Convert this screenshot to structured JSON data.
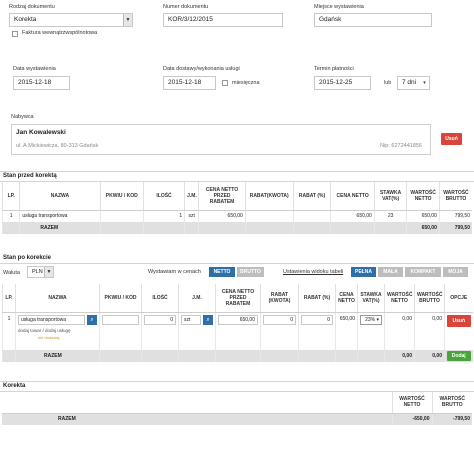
{
  "header": {
    "doc_type_label": "Rodzaj dokumentu",
    "doc_type_value": "Korekta",
    "vat_invoice_checkbox_label": "Faktura wewnątrzwspólnotowa",
    "doc_number_label": "Numer dokumentu",
    "doc_number_value": "KOR/3/12/2015",
    "place_label": "Miejsce wystawienia",
    "place_value": "Gdańsk"
  },
  "dates": {
    "issue_label": "Data wystawienia",
    "issue_value": "2015-12-18",
    "delivery_label": "Data dostawy/wykonania usługi",
    "delivery_value": "2015-12-18",
    "monthly_label": "miesięczna",
    "due_label": "Termin płatności",
    "due_value": "2015-12-25",
    "or_label": "lub",
    "days_value": "7 dni"
  },
  "buyer": {
    "label": "Nabywca",
    "name": "Jan Kowalewski",
    "address": "ul. A.Mickiewicza, 80-313 Gdańsk",
    "nip": "Nip: 6272441856",
    "remove_label": "Usuń"
  },
  "before": {
    "title": "Stan przed korektą",
    "headers": [
      "LP.",
      "NAZWA",
      "PKWIU / KOD",
      "ILOŚĆ",
      "J.M.",
      "CENA NETTO PRZED RABATEM",
      "RABAT(KWOTA)",
      "RABAT (%)",
      "CENA NETTO",
      "STAWKA VAT(%)",
      "WARTOŚĆ NETTO",
      "WARTOŚĆ BRUTTO"
    ],
    "row": [
      "1",
      "usługa transportowa",
      "",
      "1",
      "szt",
      "650,00",
      "",
      "",
      "650,00",
      "23",
      "650,00",
      "799,50"
    ],
    "sum_label": "RAZEM",
    "sum_netto": "650,00",
    "sum_brutto": "799,50"
  },
  "after": {
    "title": "Stan po korekcie",
    "currency_label": "Waluta",
    "currency_value": "PLN",
    "prices_label": "Wystawiam w cenach",
    "netto_label": "NETTO",
    "brutto_label": "BRUTTO",
    "view_settings_label": "Ustawienia widoku tabeli",
    "view_options": [
      "PEŁNA",
      "MAŁA",
      "KOMPAKT",
      "MOJA"
    ],
    "headers": [
      "LP.",
      "NAZWA",
      "PKWIU / KOD",
      "ILOŚĆ",
      "J.M.",
      "CENA NETTO PRZED RABATEM",
      "RABAT (KWOTA)",
      "RABAT (%)",
      "CENA NETTO",
      "STAWKA VAT(%)",
      "WARTOŚĆ NETTO",
      "WARTOŚĆ BRUTTO",
      "OPCJE"
    ],
    "row_lp": "1",
    "row_name": "usługa transportowa",
    "row_qty": "0",
    "row_unit": "szt",
    "row_price_before": "650,00",
    "row_discount_amount": "0",
    "row_discount_pct": "0",
    "row_price_netto": "650,00",
    "row_vat": "23%",
    "row_value_netto": "0,00",
    "row_value_brutto": "0,00",
    "remove_label": "Usuń",
    "add_item_text": "dodaj towar / dodaj usługę",
    "discount_link": "nie dodawaj",
    "sum_label": "RAZEM",
    "sum_netto": "0,00",
    "sum_brutto": "0,00",
    "add_label": "Dodaj"
  },
  "correction": {
    "title": "Korekta",
    "netto_header": "WARTOŚĆ NETTO",
    "brutto_header": "WARTOŚĆ BRUTTO",
    "sum_label": "RAZEM",
    "sum_netto": "-650,00",
    "sum_brutto": "-799,50"
  },
  "colors": {
    "accent_blue": "#2f6fa9",
    "danger_red": "#d9453b",
    "success_green": "#49a43c",
    "toggle_inactive": "#bdbdbd"
  }
}
